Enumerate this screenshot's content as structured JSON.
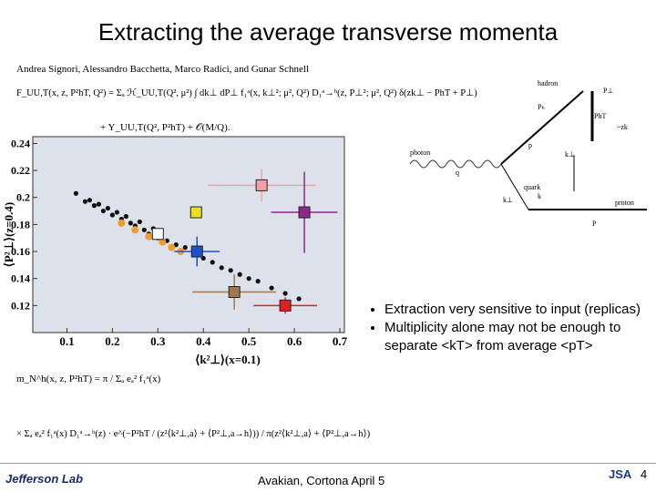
{
  "title": "Extracting the average transverse momenta",
  "authors": "Andrea Signori, Alessandro Bacchetta, Marco Radici, and Gunar Schnell",
  "equations": {
    "structure_function_1": "F_UU,T(x, z, P²hT, Q²) = Σₐ ℋ_UU,T(Q², μ²) ∫ dk⊥ dP⊥ f₁ᵃ(x, k⊥²; μ², Q²) D₁ᵃ→ʰ(z, P⊥²; μ², Q²) δ(zk⊥ − PhT + P⊥)",
    "structure_function_2": "+ Y_UU,T(Q², P²hT) + 𝒪(M/Q).",
    "multiplicity_1": "m_N^h(x, z, P²hT) = π / Σₐ eₐ² f₁ᵃ(x)",
    "multiplicity_2": "× Σₐ eₐ² f₁ᵃ(x) D₁ᵃ→ʰ(z) · e^(−P²hT / (z²⟨k²⊥,a⟩ + ⟨P²⊥,a→h⟩)) / π(z²⟨k²⊥,a⟩ + ⟨P²⊥,a→h⟩)"
  },
  "chart_data": {
    "type": "scatter",
    "xlabel": "⟨k²⊥⟩(x=0.1)",
    "ylabel": "⟨P²⊥⟩(z=0.4)",
    "xlim": [
      0.025,
      0.71
    ],
    "ylim": [
      0.1,
      0.245
    ],
    "xticks": [
      0.1,
      0.2,
      0.3,
      0.4,
      0.5,
      0.6,
      0.7
    ],
    "yticks": [
      0.12,
      0.14,
      0.16,
      0.18,
      0.2,
      0.22,
      0.24
    ],
    "series": [
      {
        "color": "#111111",
        "x": [
          0.12,
          0.14,
          0.15,
          0.16,
          0.17,
          0.18,
          0.19,
          0.2,
          0.21,
          0.22,
          0.23,
          0.24,
          0.25,
          0.26,
          0.27,
          0.28,
          0.29,
          0.3,
          0.32,
          0.34,
          0.36,
          0.38,
          0.4,
          0.42,
          0.44,
          0.46,
          0.48,
          0.5,
          0.52,
          0.55,
          0.58,
          0.61
        ],
        "values": [
          0.203,
          0.197,
          0.198,
          0.194,
          0.195,
          0.19,
          0.192,
          0.187,
          0.189,
          0.184,
          0.186,
          0.181,
          0.179,
          0.182,
          0.176,
          0.173,
          0.177,
          0.17,
          0.168,
          0.165,
          0.163,
          0.158,
          0.155,
          0.152,
          0.148,
          0.146,
          0.143,
          0.14,
          0.138,
          0.133,
          0.129,
          0.125
        ]
      },
      {
        "color": "#f39a2e",
        "x": [
          0.22,
          0.25,
          0.28,
          0.31,
          0.33,
          0.35
        ],
        "values": [
          0.181,
          0.176,
          0.171,
          0.167,
          0.163,
          0.16
        ]
      },
      {
        "colors": [
          "#ffffff",
          "#e8e020",
          "#f4a0a8",
          "#8a2a8a",
          "#2050d0",
          "#a07850",
          "#e02020"
        ],
        "x": [
          0.3,
          0.384,
          0.528,
          0.622,
          0.386,
          0.468,
          0.58
        ],
        "values": [
          0.173,
          0.189,
          0.209,
          0.189,
          0.16,
          0.13,
          0.12
        ],
        "xerr": [
          0.01,
          0.008,
          0.118,
          0.073,
          0.05,
          0.092,
          0.07
        ],
        "yerr": [
          0.003,
          0.003,
          0.012,
          0.03,
          0.011,
          0.013,
          0.006
        ]
      }
    ]
  },
  "diagram": {
    "labels": [
      "hadron",
      "photon",
      "quark",
      "proton",
      "Pₕ",
      "P⊥",
      "PhT",
      "~zk",
      "k⊥",
      "p",
      "q",
      "k⊥",
      "k",
      "P"
    ]
  },
  "bullets": [
    "Extraction very sensitive to input (replicas)",
    "Multiplicity alone may not be enough to separate <kT> from average <pT>"
  ],
  "footer": {
    "logo": "Jefferson Lab",
    "text": "Avakian, Cortona  April 5",
    "logo_right": "JSA",
    "page": "4"
  }
}
